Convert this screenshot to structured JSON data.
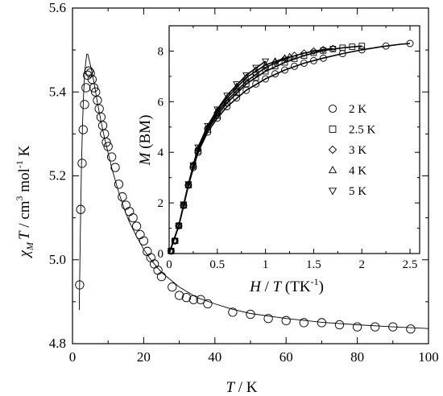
{
  "chart_data": [
    {
      "type": "scatter",
      "role": "main",
      "xlabel": {
        "var": "T",
        "unit": " / K"
      },
      "ylabel": {
        "var": "χ",
        "sub": "M",
        "var2": "T",
        "unit_a": " / cm",
        "sup_a": "3",
        "unit_b": " mol",
        "sup_b": "-1",
        "unit_c": " K"
      },
      "xlim": [
        0,
        100
      ],
      "ylim": [
        4.8,
        5.6
      ],
      "xticks": [
        0,
        20,
        40,
        60,
        80,
        100
      ],
      "yticks": [
        4.8,
        5.0,
        5.2,
        5.4,
        5.6
      ],
      "xtick_labels": [
        "0",
        "20",
        "40",
        "60",
        "80",
        "100"
      ],
      "ytick_labels": [
        "4.8",
        "5.0",
        "5.2",
        "5.4",
        "5.6"
      ],
      "series": [
        {
          "marker": "circle",
          "x": [
            2.0,
            2.3,
            2.7,
            3.0,
            3.4,
            3.8,
            4.2,
            4.6,
            5.0,
            5.5,
            6.0,
            6.5,
            7.0,
            7.5,
            8.0,
            8.5,
            9.0,
            9.5,
            10,
            11,
            12,
            13,
            14,
            15,
            16,
            17,
            18,
            19,
            20,
            21,
            22,
            23,
            24,
            25,
            28,
            30,
            32,
            34,
            36,
            38,
            45,
            50,
            55,
            60,
            65,
            70,
            75,
            80,
            85,
            90,
            95
          ],
          "y": [
            4.94,
            5.12,
            5.23,
            5.31,
            5.37,
            5.41,
            5.44,
            5.45,
            5.445,
            5.43,
            5.41,
            5.4,
            5.38,
            5.36,
            5.34,
            5.32,
            5.3,
            5.28,
            5.27,
            5.245,
            5.22,
            5.18,
            5.15,
            5.13,
            5.115,
            5.1,
            5.08,
            5.06,
            5.045,
            5.02,
            5.005,
            4.99,
            4.975,
            4.96,
            4.935,
            4.915,
            4.91,
            4.905,
            4.905,
            4.895,
            4.875,
            4.87,
            4.86,
            4.855,
            4.85,
            4.85,
            4.845,
            4.84,
            4.84,
            4.84,
            4.835
          ]
        },
        {
          "style": "fit-line",
          "x": [
            1.9,
            2.2,
            2.5,
            2.8,
            3.1,
            3.4,
            3.7,
            4.0,
            4.3,
            4.6,
            5.0,
            5.5,
            6.0,
            6.5,
            7.0,
            8.0,
            9.0,
            10,
            11,
            12,
            13,
            14,
            15,
            16,
            18,
            20,
            22,
            25,
            30,
            35,
            40,
            45,
            50,
            60,
            70,
            80,
            90,
            100
          ],
          "y": [
            4.88,
            5.06,
            5.21,
            5.32,
            5.39,
            5.44,
            5.47,
            5.49,
            5.49,
            5.48,
            5.465,
            5.445,
            5.425,
            5.4,
            5.375,
            5.33,
            5.29,
            5.255,
            5.22,
            5.19,
            5.16,
            5.135,
            5.11,
            5.09,
            5.055,
            5.025,
            5.0,
            4.97,
            4.935,
            4.91,
            4.895,
            4.882,
            4.872,
            4.86,
            4.851,
            4.845,
            4.84,
            4.836
          ]
        }
      ]
    },
    {
      "type": "scatter",
      "role": "inset",
      "xlabel": {
        "var": "H",
        "mid": " / ",
        "var2": "T",
        "unit": " (TK",
        "sup": "-1",
        "close": ")"
      },
      "ylabel": {
        "var": "M",
        "unit": " (BM)"
      },
      "xlim": [
        0,
        2.6
      ],
      "ylim": [
        0,
        9
      ],
      "xticks": [
        0,
        0.5,
        1,
        1.5,
        2,
        2.5
      ],
      "yticks": [
        0,
        2,
        4,
        6,
        8
      ],
      "xtick_labels": [
        "0",
        "0.5",
        "1",
        "1.5",
        "2",
        "2.5"
      ],
      "ytick_labels": [
        "0",
        "2",
        "4",
        "6",
        "8"
      ],
      "legend": {
        "position": "right",
        "entries": [
          "2 K",
          "2.5 K",
          "3 K",
          "4 K",
          "5 K"
        ]
      },
      "series": [
        {
          "name": "2 K",
          "marker": "circle",
          "x": [
            0.02,
            0.06,
            0.1,
            0.15,
            0.2,
            0.25,
            0.3,
            0.4,
            0.5,
            0.6,
            0.7,
            0.8,
            0.9,
            1.0,
            1.1,
            1.2,
            1.3,
            1.4,
            1.5,
            1.6,
            1.8,
            2.0,
            2.25,
            2.5
          ],
          "y": [
            0.1,
            0.5,
            1.1,
            1.9,
            2.7,
            3.4,
            4.0,
            4.8,
            5.35,
            5.8,
            6.15,
            6.45,
            6.7,
            6.9,
            7.1,
            7.25,
            7.4,
            7.52,
            7.62,
            7.72,
            7.9,
            8.05,
            8.2,
            8.3
          ]
        },
        {
          "name": "2.5 K",
          "marker": "square",
          "x": [
            0.02,
            0.06,
            0.1,
            0.15,
            0.2,
            0.25,
            0.3,
            0.4,
            0.5,
            0.6,
            0.7,
            0.8,
            0.9,
            1.0,
            1.1,
            1.2,
            1.3,
            1.4,
            1.5,
            1.6,
            1.7,
            1.8,
            1.9,
            2.0
          ],
          "y": [
            0.1,
            0.5,
            1.1,
            1.9,
            2.7,
            3.45,
            4.05,
            4.9,
            5.45,
            5.95,
            6.35,
            6.7,
            6.95,
            7.2,
            7.4,
            7.55,
            7.7,
            7.82,
            7.93,
            8.02,
            8.08,
            8.13,
            8.17,
            8.2
          ]
        },
        {
          "name": "3 K",
          "marker": "diamond",
          "x": [
            0.02,
            0.06,
            0.1,
            0.15,
            0.2,
            0.25,
            0.3,
            0.4,
            0.5,
            0.6,
            0.7,
            0.8,
            0.9,
            1.0,
            1.1,
            1.2,
            1.3,
            1.4,
            1.5,
            1.6,
            1.7
          ],
          "y": [
            0.1,
            0.5,
            1.1,
            1.9,
            2.7,
            3.45,
            4.1,
            4.95,
            5.55,
            6.05,
            6.45,
            6.8,
            7.1,
            7.35,
            7.55,
            7.7,
            7.83,
            7.92,
            8.0,
            8.06,
            8.1
          ]
        },
        {
          "name": "4 K",
          "marker": "triangle-up",
          "x": [
            0.02,
            0.06,
            0.1,
            0.15,
            0.2,
            0.25,
            0.3,
            0.4,
            0.5,
            0.6,
            0.7,
            0.8,
            0.9,
            1.0,
            1.1,
            1.2,
            1.25
          ],
          "y": [
            0.1,
            0.5,
            1.1,
            1.9,
            2.7,
            3.5,
            4.15,
            5.0,
            5.65,
            6.15,
            6.6,
            6.95,
            7.25,
            7.45,
            7.6,
            7.72,
            7.78
          ]
        },
        {
          "name": "5 K",
          "marker": "triangle-down",
          "x": [
            0.02,
            0.06,
            0.1,
            0.15,
            0.2,
            0.25,
            0.3,
            0.4,
            0.5,
            0.6,
            0.7,
            0.8,
            0.9,
            1.0
          ],
          "y": [
            0.1,
            0.5,
            1.1,
            1.95,
            2.75,
            3.5,
            4.2,
            5.05,
            5.7,
            6.25,
            6.7,
            7.05,
            7.35,
            7.6
          ]
        },
        {
          "style": "fit-line",
          "x": [
            0,
            0.1,
            0.2,
            0.3,
            0.4,
            0.5,
            0.6,
            0.8,
            1.0,
            1.2,
            1.4,
            1.6,
            1.8,
            2.0,
            2.2,
            2.4,
            2.5
          ],
          "y": [
            0,
            1.1,
            2.7,
            4.0,
            4.8,
            5.35,
            5.8,
            6.45,
            6.9,
            7.25,
            7.52,
            7.72,
            7.9,
            8.05,
            8.17,
            8.27,
            8.3
          ]
        },
        {
          "style": "fit-line",
          "x": [
            0,
            0.1,
            0.2,
            0.3,
            0.4,
            0.5,
            0.6,
            0.8,
            1.0,
            1.2,
            1.4,
            1.6,
            1.8,
            2.0
          ],
          "y": [
            0,
            1.1,
            2.7,
            4.05,
            4.9,
            5.45,
            5.95,
            6.7,
            7.2,
            7.55,
            7.82,
            8.02,
            8.13,
            8.2
          ]
        },
        {
          "style": "fit-line",
          "x": [
            0,
            0.1,
            0.2,
            0.3,
            0.4,
            0.5,
            0.6,
            0.8,
            1.0,
            1.2,
            1.4,
            1.6,
            1.7
          ],
          "y": [
            0,
            1.1,
            2.7,
            4.1,
            4.95,
            5.55,
            6.05,
            6.8,
            7.35,
            7.7,
            7.92,
            8.06,
            8.1
          ]
        },
        {
          "style": "fit-line",
          "x": [
            0,
            0.1,
            0.2,
            0.3,
            0.4,
            0.5,
            0.6,
            0.8,
            1.0,
            1.2,
            1.25
          ],
          "y": [
            0,
            1.1,
            2.7,
            4.15,
            5.0,
            5.65,
            6.15,
            6.95,
            7.45,
            7.72,
            7.78
          ]
        },
        {
          "style": "fit-line",
          "x": [
            0,
            0.1,
            0.2,
            0.3,
            0.4,
            0.5,
            0.6,
            0.8,
            1.0
          ],
          "y": [
            0,
            1.1,
            2.75,
            4.2,
            5.05,
            5.7,
            6.25,
            7.05,
            7.6
          ]
        }
      ]
    }
  ]
}
